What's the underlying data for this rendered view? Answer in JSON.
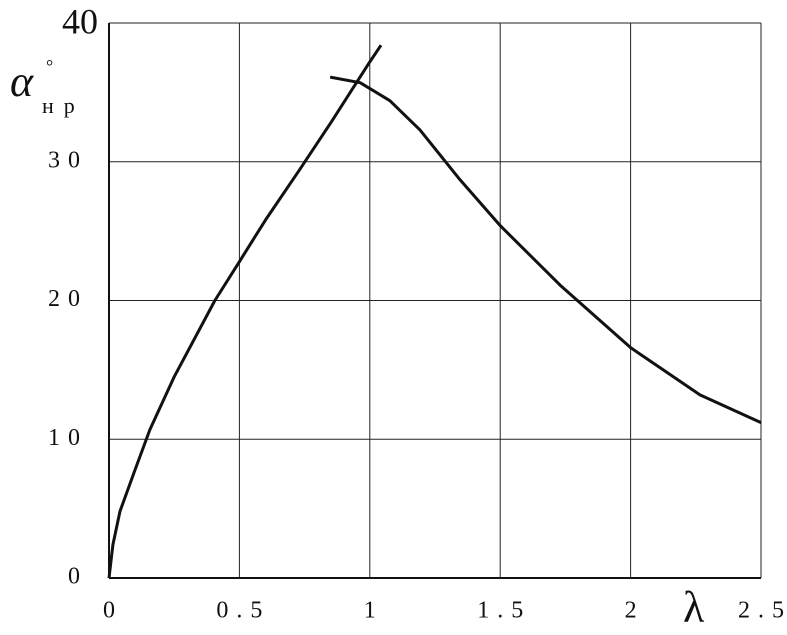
{
  "chart_data": {
    "type": "line",
    "x_label": "λ",
    "y_label": "α",
    "y_label_superscript": "°",
    "y_label_subscript": "нр",
    "series": [
      {
        "color": "#111111",
        "x": [
          0,
          0.015,
          0.042,
          0.1,
          0.157,
          0.25,
          0.406,
          0.5,
          0.6,
          0.73,
          0.85,
          1.0,
          1.043
        ],
        "values": [
          0,
          2.4,
          4.8,
          7.8,
          10.7,
          14.5,
          20,
          22.8,
          25.8,
          29.4,
          32.8,
          37.2,
          38.4
        ]
      },
      {
        "color": "#111111",
        "x": [
          0.848,
          0.963,
          1.077,
          1.192,
          1.346,
          1.5,
          1.73,
          2.0,
          2.266,
          2.5
        ],
        "values": [
          36.1,
          35.7,
          34.4,
          32.3,
          28.7,
          25.4,
          21.1,
          16.6,
          13.2,
          11.2
        ]
      }
    ],
    "xlim": [
      0,
      2.5
    ],
    "ylim": [
      0,
      40
    ],
    "xticks": [
      0,
      0.5,
      1,
      1.5,
      2,
      2.5
    ],
    "yticks": [
      0,
      10,
      20,
      30,
      40
    ],
    "grid": true
  }
}
